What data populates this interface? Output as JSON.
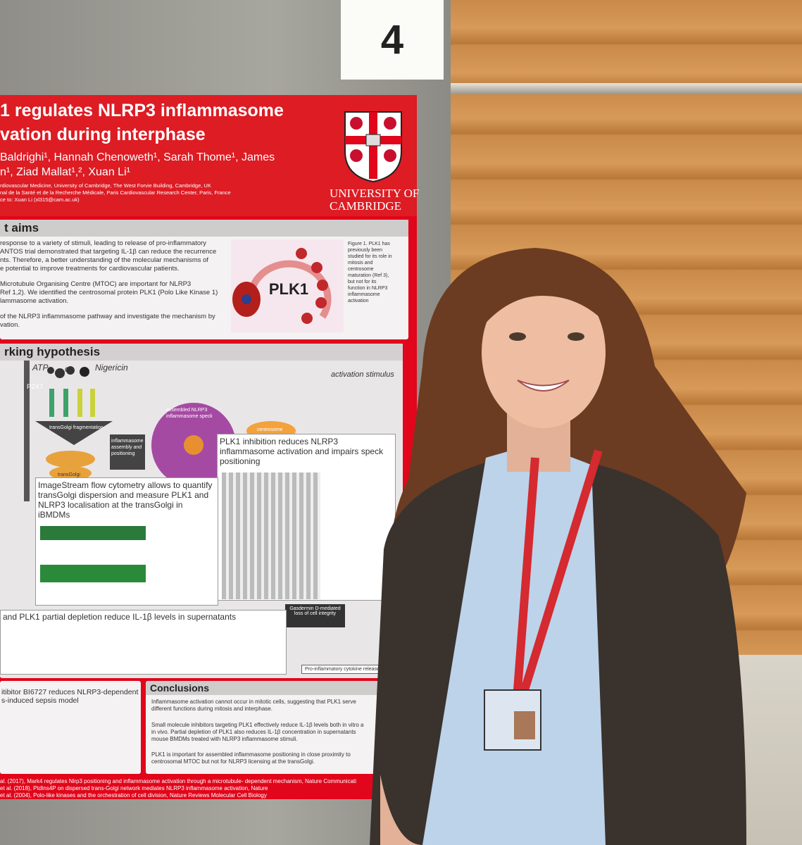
{
  "sign": "4",
  "poster": {
    "title_lines": [
      "1 regulates NLRP3 inflammasome",
      "vation during interphase"
    ],
    "author_lines": [
      "Baldrighi¹, Hannah Chenoweth¹, Sarah Thome¹, James",
      "n¹, Ziad Mallat¹,², Xuan Li¹"
    ],
    "affiliations": [
      "rdiovascular Medicine, University of Cambridge, The West Forvie Building, Cambridge, UK",
      "nal de la Santé et de la Recherche Médicale, Paris Cardiovascular Research Center, Paris, France",
      "ce to: Xuan Li (xl315@cam.ac.uk)"
    ],
    "logo": [
      "UNIVERSITY OF",
      "CAMBRIDGE"
    ],
    "aims": {
      "heading": "t aims",
      "lines": [
        "response to a variety of stimuli, leading to release of pro-inflammatory",
        "ANTOS trial demonstrated that targeting IL-1β can reduce the recurrence",
        "nts. Therefore, a better understanding of the molecular mechanisms of",
        "e potential to improve treatments for cardiovascular patients.",
        "Microtubule Organising Centre (MTOC) are important for NLRP3",
        "Ref 1,2). We identified the centrosomal protein PLK1 (Polo Like Kinase 1)",
        "lammasome activation.",
        "of the NLRP3 inflammasome pathway and investigate the mechanism by",
        "vation."
      ],
      "figure_label": "PLK1",
      "figure_caption": [
        "Figure 1. PLK1 has",
        "previously been",
        "studied for its role in",
        "mitosis and",
        "centrosome",
        "maturation (Ref 3),",
        "but not for its",
        "function in NLRP3",
        "inflammasome",
        "activation"
      ]
    },
    "hypothesis": {
      "heading": "rking hypothesis",
      "labels": [
        "ATP",
        "or",
        "Nigericin",
        "P2X7",
        "activation stimulus",
        "assembled NLRP3 inflammasome speck",
        "centrosome",
        "transGolgi fragmentation",
        "transGolgi",
        "inflammasome assembly and positioning"
      ],
      "plk1_box": "PLK1 inhibition reduces NLRP3 inflammasome activation and impairs speck positioning",
      "imagestream": "ImageStream flow cytometry allows to quantify transGolgi dispersion and measure PLK1 and NLRP3 localisation at the transGolgi in iBMDMs",
      "gasdermin": "Gasdermin D-mediated loss of cell integrity",
      "cytokine": "Pro-inflammatory cytokine release",
      "il1b": "and PLK1 partial depletion reduce IL-1β levels in supernatants"
    },
    "sepsis": [
      "itibitor BI6727 reduces NLRP3-dependent",
      "s-induced sepsis model"
    ],
    "conclusions": {
      "heading": "Conclusions",
      "lines": [
        "Inflammasome activation cannot occur in mitotic cells, suggesting that PLK1 serve",
        "different functions during mitosis and interphase.",
        "Small molecule inhibitors targeting PLK1 effectively reduce IL-1β levels both in vitro a",
        "in vivo. Partial depletion of PLK1 also reduces IL-1β concentration in supernatants",
        "mouse BMDMs treated with NLRP3 inflammasome stimuli.",
        "PLK1 is important for assembled inflammasome positioning in close proximity to",
        "centrosomal MTOC but not for NLRP3 licensing at the transGolgi."
      ]
    },
    "references": [
      "al. (2017), Mark4 regulates Nlrp3 positioning and inflammasome activation through a microtubule- dependent mechanism, Nature Communicati",
      "et al. (2018), PtdIns4P on dispersed trans-Golgi network mediates NLRP3 inflammasome activation, Nature",
      "et al. (2004), Polo-like kinases and the orchestration of cell division, Nature Reviews Molecular Cell Biology"
    ]
  }
}
